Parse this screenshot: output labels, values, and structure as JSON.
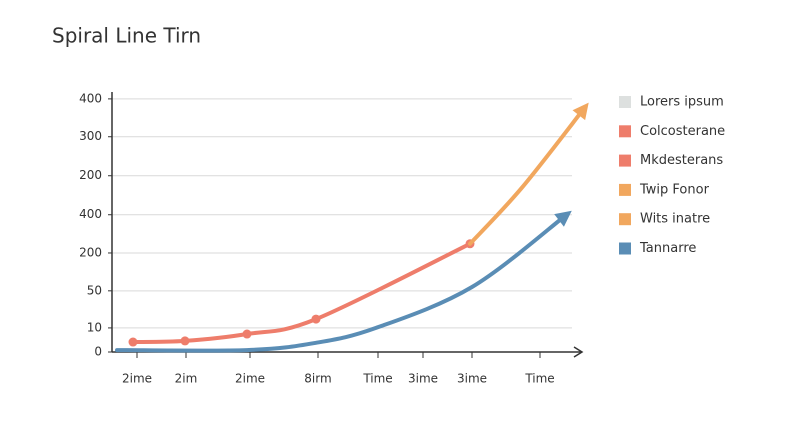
{
  "chart_data": {
    "type": "line",
    "title": "Spiral Line Tirn",
    "xlim": [
      0,
      47
    ],
    "xticks": [
      {
        "value": 2.5,
        "label": "2ime"
      },
      {
        "value": 7.4,
        "label": "2im"
      },
      {
        "value": 13.8,
        "label": "2ime"
      },
      {
        "value": 20.6,
        "label": "8irm"
      },
      {
        "value": 26.6,
        "label": "Time"
      },
      {
        "value": 31.1,
        "label": "3ime"
      },
      {
        "value": 36,
        "label": "3ime"
      },
      {
        "value": 42.8,
        "label": "Time"
      }
    ],
    "ylim": [
      0,
      6.8
    ],
    "yticks": [
      0,
      {
        "value": 0.63,
        "label": "10"
      },
      {
        "value": 1.6,
        "label": "50"
      },
      {
        "value": 2.59,
        "label": "200"
      },
      {
        "value": 3.59,
        "label": "400"
      },
      {
        "value": 4.61,
        "label": "200"
      },
      {
        "value": 5.63,
        "label": "300"
      },
      {
        "value": 6.62,
        "label": "400"
      }
    ],
    "grid": true,
    "series": [
      {
        "name": "Lorers ipsum",
        "color": "#dde0df"
      },
      {
        "name": "Colcosterane",
        "color": "#ee7d6b",
        "markers": true,
        "x": [
          2.1,
          7.3,
          13.5,
          20.4,
          35.8
        ],
        "values": [
          0.26,
          0.29,
          0.47,
          0.86,
          2.83
        ]
      },
      {
        "name": "Mkdesterans",
        "color": "#ee7d6b"
      },
      {
        "name": "Twip Fonor",
        "color": "#f1a75e",
        "markers": false,
        "arrow": true,
        "x": [
          35.8,
          41,
          47.3
        ],
        "values": [
          2.83,
          4.3,
          6.4
        ]
      },
      {
        "name": "Wits inatre",
        "color": "#f1a75e"
      },
      {
        "name": "Tannarre",
        "color": "#5a8db5",
        "markers": false,
        "arrow": true,
        "x": [
          0.5,
          13.5,
          20.4,
          26.4,
          36,
          45.5
        ],
        "values": [
          0.05,
          0.05,
          0.24,
          0.63,
          1.7,
          3.6
        ]
      }
    ],
    "legend": "right"
  }
}
